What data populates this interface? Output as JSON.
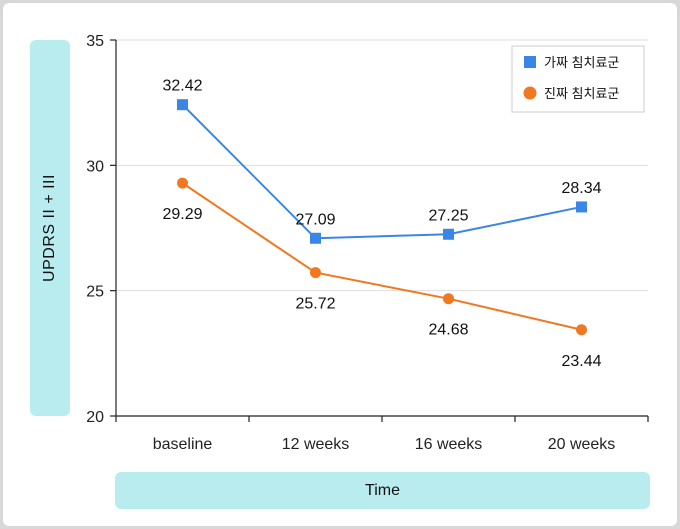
{
  "chart_data": {
    "type": "line",
    "categories": [
      "baseline",
      "12 weeks",
      "16 weeks",
      "20 weeks"
    ],
    "ylabel": "UPDRS II + III",
    "xlabel": "Time",
    "ylim": [
      20,
      35
    ],
    "yticks": [
      20,
      25,
      30,
      35
    ],
    "grid": true,
    "legend_position": "top-right",
    "series": [
      {
        "name": "가짜 침치료군",
        "color": "#3a86e8",
        "marker": "square",
        "values": [
          32.42,
          27.09,
          27.25,
          28.34
        ]
      },
      {
        "name": "진짜 침치료군",
        "color": "#f07820",
        "marker": "circle",
        "values": [
          29.29,
          25.72,
          24.68,
          23.44
        ]
      }
    ]
  }
}
